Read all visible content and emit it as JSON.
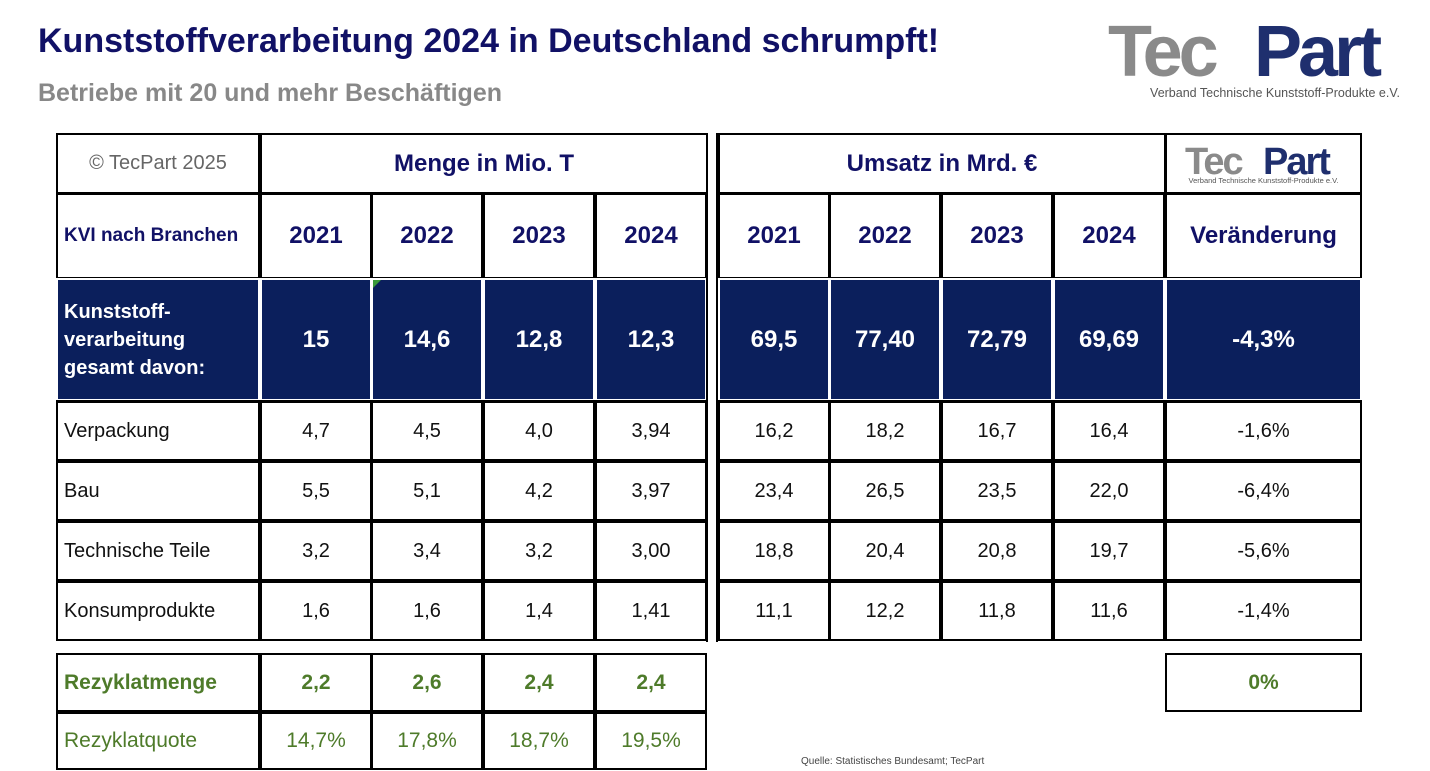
{
  "header": {
    "title": "Kunststoffverarbeitung 2024 in Deutschland schrumpft!",
    "subtitle": "Betriebe mit 20 und mehr Beschäftigen"
  },
  "logo": {
    "text": "TecPart",
    "tagline": "Verband Technische Kunststoff-Produkte e.V.",
    "colors": {
      "gray": "#8a8a8a",
      "navy": "#1f2f6e"
    }
  },
  "table": {
    "copyright": "© TecPart 2025",
    "menge_header": "Menge in Mio. T",
    "umsatz_header": "Umsatz in Mrd. €",
    "row_label_header": "KVI nach Branchen",
    "years": [
      "2021",
      "2022",
      "2023",
      "2024"
    ],
    "change_header": "Veränderung",
    "total": {
      "label": "Kunststoff-verarbeitung gesamt davon:",
      "menge": [
        "15",
        "14,6",
        "12,8",
        "12,3"
      ],
      "umsatz": [
        "69,5",
        "77,40",
        "72,79",
        "69,69"
      ],
      "change": "-4,3%"
    },
    "rows": [
      {
        "label": "Verpackung",
        "menge": [
          "4,7",
          "4,5",
          "4,0",
          "3,94"
        ],
        "umsatz": [
          "16,2",
          "18,2",
          "16,7",
          "16,4"
        ],
        "change": "-1,6%"
      },
      {
        "label": "Bau",
        "menge": [
          "5,5",
          "5,1",
          "4,2",
          "3,97"
        ],
        "umsatz": [
          "23,4",
          "26,5",
          "23,5",
          "22,0"
        ],
        "change": "-6,4%"
      },
      {
        "label": "Technische Teile",
        "menge": [
          "3,2",
          "3,4",
          "3,2",
          "3,00"
        ],
        "umsatz": [
          "18,8",
          "20,4",
          "20,8",
          "19,7"
        ],
        "change": "-5,6%"
      },
      {
        "label": "Konsumprodukte",
        "menge": [
          "1,6",
          "1,6",
          "1,4",
          "1,41"
        ],
        "umsatz": [
          "11,1",
          "12,2",
          "11,8",
          "11,6"
        ],
        "change": "-1,4%"
      }
    ],
    "rezyklatmenge": {
      "label": "Rezyklatmenge",
      "values": [
        "2,2",
        "2,6",
        "2,4",
        "2,4"
      ],
      "change": "0%"
    },
    "rezyklatquote": {
      "label": "Rezyklatquote",
      "values": [
        "14,7%",
        "17,8%",
        "18,7%",
        "19,5%"
      ]
    },
    "colors": {
      "navy": "#0b1f5c",
      "green": "#4e7b2a",
      "header_text": "#111166"
    }
  },
  "source": "Quelle: Statistisches Bundesamt; TecPart"
}
